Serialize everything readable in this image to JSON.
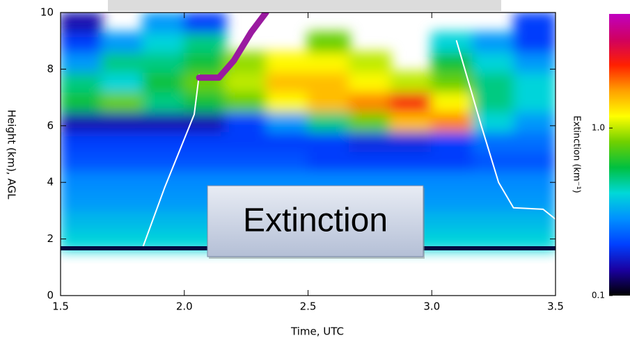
{
  "chart_data": {
    "type": "heatmap",
    "xlabel": "Time, UTC",
    "ylabel": "Height (km), AGL",
    "annotation": "Extinction",
    "xlim": [
      1.5,
      3.5
    ],
    "ylim": [
      0,
      10
    ],
    "xticks": [
      1.5,
      {
        "value": 2,
        "label": "2.0"
      },
      2.5,
      {
        "value": 3,
        "label": "3.0"
      },
      3.5
    ],
    "yticks": [
      0,
      2,
      4,
      6,
      8,
      10
    ],
    "x": [
      1.583,
      1.75,
      1.917,
      2.083,
      2.25,
      2.417,
      2.583,
      2.75,
      2.917,
      3.083,
      3.25,
      3.417
    ],
    "y": [
      1.95,
      2.65,
      3.35,
      4.05,
      4.75,
      5.45,
      6.15,
      6.85,
      7.55,
      8.25,
      8.95,
      9.65
    ],
    "z": [
      [
        0.4,
        0.4,
        0.4,
        0.4,
        0.4,
        0.4,
        0.4,
        0.4,
        0.4,
        0.4,
        0.4,
        0.4
      ],
      [
        0.35,
        0.35,
        0.35,
        0.35,
        0.35,
        0.35,
        0.35,
        0.35,
        0.35,
        0.35,
        0.35,
        0.35
      ],
      [
        0.3,
        0.3,
        0.3,
        0.3,
        0.3,
        0.3,
        0.3,
        0.3,
        0.3,
        0.3,
        0.3,
        0.3
      ],
      [
        0.28,
        0.28,
        0.28,
        0.28,
        0.28,
        0.28,
        0.28,
        0.28,
        0.28,
        0.28,
        0.28,
        0.28
      ],
      [
        0.22,
        0.22,
        0.22,
        0.22,
        0.22,
        0.22,
        0.2,
        0.2,
        0.2,
        0.2,
        0.22,
        0.22
      ],
      [
        0.2,
        0.2,
        0.2,
        0.2,
        0.2,
        0.2,
        0.2,
        0.18,
        0.18,
        0.2,
        0.25,
        0.25
      ],
      [
        0.15,
        0.15,
        0.15,
        0.15,
        0.2,
        0.3,
        0.5,
        0.8,
        1.5,
        1.8,
        0.4,
        0.3
      ],
      [
        0.6,
        0.8,
        0.5,
        0.6,
        0.8,
        1.2,
        1.5,
        1.8,
        2.5,
        1.2,
        0.5,
        0.4
      ],
      [
        0.5,
        0.4,
        0.6,
        0.8,
        1.0,
        1.5,
        1.5,
        1.2,
        1.0,
        0.8,
        0.5,
        0.4
      ],
      [
        0.3,
        0.5,
        0.5,
        0.6,
        0.9,
        1.2,
        1.2,
        1.0,
        null,
        0.6,
        0.4,
        0.3
      ],
      [
        0.2,
        0.3,
        0.4,
        0.5,
        null,
        null,
        0.8,
        null,
        null,
        0.4,
        0.3,
        0.2
      ],
      [
        0.15,
        null,
        0.3,
        0.2,
        null,
        null,
        null,
        null,
        null,
        null,
        null,
        0.2
      ]
    ],
    "clim": [
      0.1,
      4.8
    ],
    "log_color": true,
    "colorbar_label": "Extinction (km⁻¹)",
    "colorbar_ticks": [
      0.1,
      {
        "value": 1,
        "label": "1.0"
      }
    ],
    "colormap": [
      "#000000",
      "#1a00a0",
      "#0040ff",
      "#0090ff",
      "#00d8d8",
      "#00c040",
      "#70d000",
      "#ffff00",
      "#ffa000",
      "#ff2000",
      "#d00060",
      "#c000c0"
    ],
    "lines": [
      {
        "color": "#ffffff",
        "width": 2,
        "x": [
          1.83,
          1.92,
          2.04,
          2.06,
          null,
          3.1,
          3.2,
          3.27,
          3.33,
          3.45,
          3.5
        ],
        "y": [
          1.65,
          3.8,
          6.4,
          7.8,
          null,
          9.0,
          6.0,
          4.0,
          3.1,
          3.05,
          2.7
        ]
      },
      {
        "color": "#9a1aa0",
        "width": 9,
        "x": [
          2.06,
          2.14,
          2.2,
          2.27,
          2.33
        ],
        "y": [
          7.7,
          7.7,
          8.3,
          9.3,
          10
        ]
      }
    ]
  }
}
